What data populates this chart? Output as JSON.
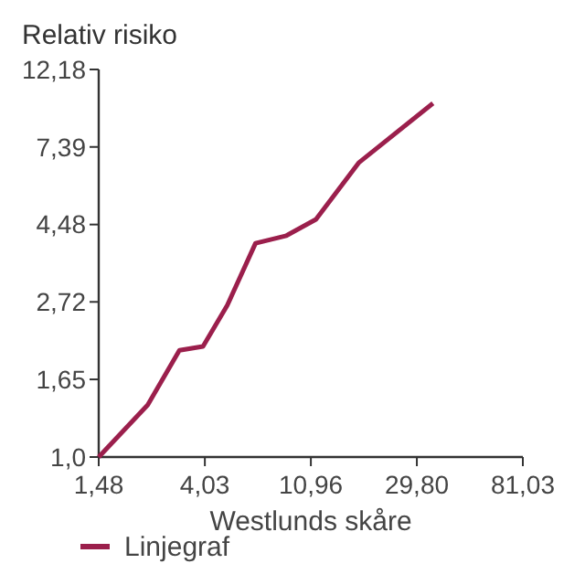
{
  "chart_data": {
    "type": "line",
    "title": "Relativ risiko",
    "xlabel": "Westlunds skåre",
    "log": "xy",
    "legend": "bottom left",
    "grid": false,
    "x": [
      1.48,
      2.35,
      3.17,
      3.96,
      4.98,
      6.5,
      8.7,
      11.5,
      17.2,
      34.7
    ],
    "series": [
      {
        "name": "Linjegraf",
        "color": "#9b1f4c",
        "values": [
          1.0,
          1.4,
          1.99,
          2.04,
          2.66,
          3.97,
          4.17,
          4.63,
          6.67,
          9.79
        ]
      }
    ],
    "xlim": [
      1.48,
      81.03
    ],
    "ylim": [
      1.0,
      12.18
    ],
    "xticks": [
      {
        "value": 1.48,
        "label": "1,48"
      },
      {
        "value": 4.03,
        "label": "4,03"
      },
      {
        "value": 10.96,
        "label": "10,96"
      },
      {
        "value": 29.8,
        "label": "29,80"
      },
      {
        "value": 81.03,
        "label": "81,03"
      }
    ],
    "yticks": [
      {
        "value": 1.0,
        "label": "1,0"
      },
      {
        "value": 1.65,
        "label": "1,65"
      },
      {
        "value": 2.72,
        "label": "2,72"
      },
      {
        "value": 4.48,
        "label": "4,48"
      },
      {
        "value": 7.39,
        "label": "7,39"
      },
      {
        "value": 12.18,
        "label": "12,18"
      }
    ],
    "marker": "none",
    "line_style": "solid"
  }
}
